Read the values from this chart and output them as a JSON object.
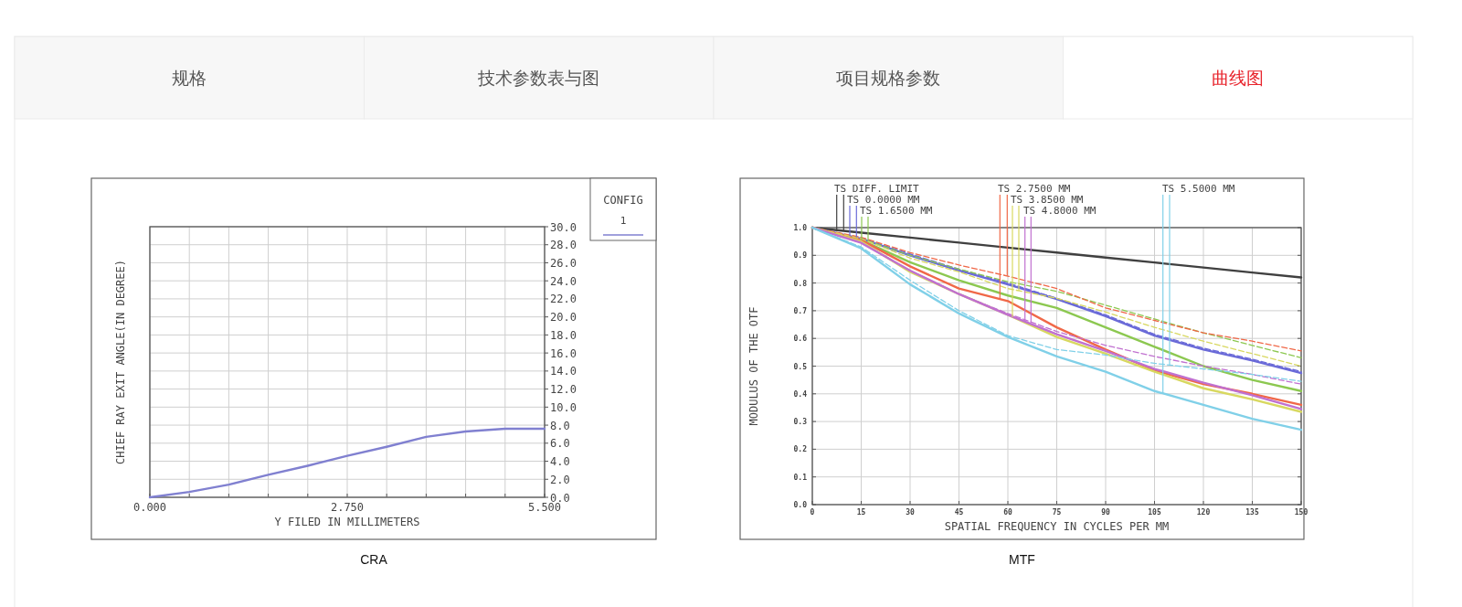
{
  "chart_data": [
    {
      "type": "other",
      "annotations": [
        "规格",
        "技术参数表与图",
        "项目规格参数",
        "曲线图"
      ]
    },
    {
      "type": "line",
      "title": "CRA",
      "xlabel": "Y FILED IN MILLIMETERS",
      "ylabel": "CHIEF RAY EXIT ANGLE(IN DEGREE)",
      "legend_title": "CONFIG",
      "legend": "top right",
      "grid": true,
      "xlim": [
        0,
        5.5
      ],
      "ylim": [
        0,
        30
      ],
      "xticks": [
        {
          "value": 0,
          "label": "0.000"
        },
        {
          "value": 0.55,
          "label": null
        },
        {
          "value": 1.1,
          "label": null
        },
        {
          "value": 1.65,
          "label": null
        },
        {
          "value": 2.2,
          "label": null
        },
        {
          "value": 2.75,
          "label": "2.750"
        },
        {
          "value": 3.3,
          "label": null
        },
        {
          "value": 3.85,
          "label": null
        },
        {
          "value": 4.4,
          "label": null
        },
        {
          "value": 4.95,
          "label": null
        },
        {
          "value": 5.5,
          "label": "5.500"
        }
      ],
      "yticks": [
        {
          "value": 0,
          "label": "0.0"
        },
        {
          "value": 2,
          "label": "2.0"
        },
        {
          "value": 4,
          "label": "4.0"
        },
        {
          "value": 6,
          "label": "6.0"
        },
        {
          "value": 8,
          "label": "8.0"
        },
        {
          "value": 10,
          "label": "10.0"
        },
        {
          "value": 12,
          "label": "12.0"
        },
        {
          "value": 14,
          "label": "14.0"
        },
        {
          "value": 16,
          "label": "16.0"
        },
        {
          "value": 18,
          "label": "18.0"
        },
        {
          "value": 20,
          "label": "20.0"
        },
        {
          "value": 22,
          "label": "22.0"
        },
        {
          "value": 24,
          "label": "24.0"
        },
        {
          "value": 26,
          "label": "26.0"
        },
        {
          "value": 28,
          "label": "28.0"
        },
        {
          "value": 30,
          "label": "30.0"
        }
      ],
      "x": [
        0,
        0.55,
        1.1,
        1.65,
        2.2,
        2.75,
        3.3,
        3.85,
        4.4,
        4.95,
        5.5
      ],
      "series": [
        {
          "name": "1",
          "color": "#8080d0",
          "values": [
            0,
            0.6,
            1.4,
            2.5,
            3.5,
            4.6,
            5.6,
            6.7,
            7.3,
            7.6,
            7.6
          ]
        }
      ]
    },
    {
      "type": "line",
      "title": "MTF",
      "xlabel": "SPATIAL FREQUENCY IN CYCLES PER MM",
      "ylabel": "MODULUS OF THE OTF",
      "legend": "top",
      "grid": true,
      "xlim": [
        0,
        150
      ],
      "ylim": [
        0,
        1
      ],
      "xticks": [
        0,
        15,
        30,
        45,
        60,
        75,
        90,
        105,
        120,
        135,
        150
      ],
      "yticks": [
        {
          "value": 0,
          "label": "0.0"
        },
        0.1,
        0.2,
        0.3,
        0.4,
        0.5,
        0.6,
        0.7,
        0.8,
        0.9,
        {
          "value": 1,
          "label": "1.0"
        }
      ],
      "x": [
        0,
        15,
        30,
        45,
        60,
        75,
        90,
        105,
        120,
        135,
        150
      ],
      "series": [
        {
          "name": "TS DIFF. LIMIT",
          "color": "#404040",
          "line_style": "solid",
          "values": [
            1,
            0.982,
            0.964,
            0.946,
            0.928,
            0.91,
            0.892,
            0.874,
            0.856,
            0.838,
            0.82
          ]
        },
        {
          "name": "TS 0.0000 MM",
          "color": "#6a6ad8",
          "line_style": "solid",
          "values": [
            1,
            0.96,
            0.9,
            0.845,
            0.795,
            0.742,
            0.68,
            0.61,
            0.56,
            0.52,
            0.475
          ]
        },
        {
          "color": "#6a6ad8",
          "line_style": "dashed",
          "values": [
            1,
            0.962,
            0.905,
            0.85,
            0.8,
            0.745,
            0.685,
            0.615,
            0.565,
            0.525,
            0.48
          ]
        },
        {
          "name": "TS 1.6500 MM",
          "color": "#8cc850",
          "line_style": "solid",
          "values": [
            1,
            0.955,
            0.875,
            0.81,
            0.755,
            0.71,
            0.64,
            0.57,
            0.5,
            0.45,
            0.41
          ]
        },
        {
          "color": "#8cc850",
          "line_style": "dashed",
          "values": [
            1,
            0.96,
            0.9,
            0.85,
            0.805,
            0.77,
            0.72,
            0.67,
            0.62,
            0.575,
            0.53
          ]
        },
        {
          "name": "TS 2.7500 MM",
          "color": "#f06848",
          "line_style": "solid",
          "values": [
            1,
            0.955,
            0.86,
            0.78,
            0.735,
            0.64,
            0.56,
            0.485,
            0.435,
            0.4,
            0.36
          ]
        },
        {
          "color": "#f06848",
          "line_style": "dashed",
          "values": [
            1,
            0.965,
            0.91,
            0.865,
            0.825,
            0.78,
            0.71,
            0.665,
            0.62,
            0.59,
            0.555
          ]
        },
        {
          "name": "TS 3.8500 MM",
          "color": "#d8d860",
          "line_style": "solid",
          "values": [
            1,
            0.95,
            0.84,
            0.76,
            0.685,
            0.605,
            0.545,
            0.48,
            0.42,
            0.38,
            0.335
          ]
        },
        {
          "color": "#d8d860",
          "line_style": "dashed",
          "values": [
            1,
            0.96,
            0.89,
            0.84,
            0.78,
            0.745,
            0.695,
            0.64,
            0.59,
            0.545,
            0.5
          ]
        },
        {
          "name": "TS 4.8000 MM",
          "color": "#c070d0",
          "line_style": "solid",
          "values": [
            1,
            0.945,
            0.845,
            0.76,
            0.685,
            0.615,
            0.555,
            0.49,
            0.44,
            0.395,
            0.345
          ]
        },
        {
          "color": "#c070d0",
          "line_style": "dashed",
          "values": [
            1,
            0.945,
            0.845,
            0.76,
            0.69,
            0.625,
            0.575,
            0.535,
            0.5,
            0.47,
            0.435
          ]
        },
        {
          "name": "TS 5.5000 MM",
          "color": "#80d0e8",
          "line_style": "solid",
          "values": [
            1,
            0.925,
            0.795,
            0.69,
            0.605,
            0.535,
            0.48,
            0.41,
            0.36,
            0.31,
            0.27
          ]
        },
        {
          "color": "#80d0e8",
          "line_style": "dashed",
          "values": [
            1,
            0.93,
            0.81,
            0.7,
            0.61,
            0.56,
            0.54,
            0.51,
            0.49,
            0.47,
            0.445
          ]
        }
      ]
    }
  ]
}
